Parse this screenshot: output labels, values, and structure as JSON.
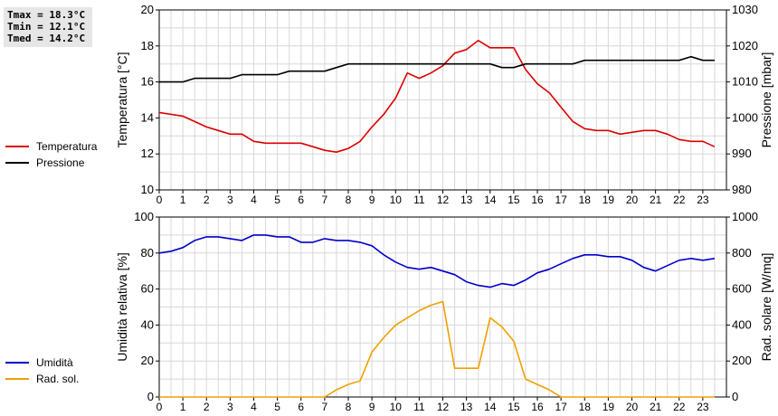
{
  "stats": {
    "tmax": "Tmax = 18.3°C",
    "tmin": "Tmin = 12.1°C",
    "tmed": "Tmed = 14.2°C"
  },
  "legend_top": [
    {
      "label": "Temperatura",
      "color": "#dd0000"
    },
    {
      "label": "Pressione",
      "color": "#000000"
    }
  ],
  "legend_bottom": [
    {
      "label": "Umidità",
      "color": "#0000cc"
    },
    {
      "label": "Rad. sol.",
      "color": "#f0a000"
    }
  ],
  "chart_data": [
    {
      "type": "line",
      "ylabel": "Temperatura [°C]",
      "y2label": "Pressione [mbar]",
      "xlim": [
        0,
        24
      ],
      "ylim": [
        10,
        20
      ],
      "y2lim": [
        980,
        1030
      ],
      "x_ticks": [
        "0",
        "1",
        "2",
        "3",
        "4",
        "5",
        "6",
        "7",
        "8",
        "9",
        "10",
        "11",
        "12",
        "13",
        "14",
        "15",
        "16",
        "17",
        "18",
        "19",
        "20",
        "21",
        "22",
        "23"
      ],
      "y_ticks": [
        "10",
        "12",
        "14",
        "16",
        "18",
        "20"
      ],
      "y2_ticks": [
        "980",
        "990",
        "1000",
        "1010",
        "1020",
        "1030"
      ],
      "grid": true,
      "series": [
        {
          "name": "Temperatura",
          "axis": "left",
          "color": "#dd0000",
          "x": [
            0,
            1,
            1.5,
            2,
            2.5,
            3,
            3.5,
            4,
            4.5,
            5,
            5.5,
            6,
            6.5,
            7,
            7.5,
            8,
            8.5,
            9,
            9.5,
            10,
            10.5,
            11,
            11.5,
            12,
            12.5,
            13,
            13.5,
            14,
            14.5,
            15,
            15.5,
            16,
            16.5,
            17,
            17.5,
            18,
            18.5,
            19,
            19.5,
            20,
            20.5,
            21,
            21.5,
            22,
            22.5,
            23,
            23.5
          ],
          "y": [
            14.3,
            14.1,
            13.8,
            13.5,
            13.3,
            13.1,
            13.1,
            12.7,
            12.6,
            12.6,
            12.6,
            12.6,
            12.4,
            12.2,
            12.1,
            12.3,
            12.7,
            13.5,
            14.2,
            15.1,
            16.5,
            16.2,
            16.5,
            16.9,
            17.6,
            17.8,
            18.3,
            17.9,
            17.9,
            17.9,
            16.7,
            15.9,
            15.4,
            14.6,
            13.8,
            13.4,
            13.3,
            13.3,
            13.1,
            13.2,
            13.3,
            13.3,
            13.1,
            12.8,
            12.7,
            12.7,
            12.4
          ]
        },
        {
          "name": "Pressione",
          "axis": "right",
          "color": "#000000",
          "x": [
            0,
            1,
            1.5,
            2,
            2.5,
            3,
            3.5,
            4,
            4.5,
            5,
            5.5,
            6,
            6.5,
            7,
            7.5,
            8,
            8.5,
            9,
            9.5,
            10,
            10.5,
            11,
            11.5,
            12,
            12.5,
            13,
            13.5,
            14,
            14.5,
            15,
            15.5,
            16,
            16.5,
            17,
            17.5,
            18,
            18.5,
            19,
            19.5,
            20,
            20.5,
            21,
            21.5,
            22,
            22.5,
            23,
            23.5
          ],
          "y": [
            1010,
            1010,
            1011,
            1011,
            1011,
            1011,
            1012,
            1012,
            1012,
            1012,
            1013,
            1013,
            1013,
            1013,
            1014,
            1015,
            1015,
            1015,
            1015,
            1015,
            1015,
            1015,
            1015,
            1015,
            1015,
            1015,
            1015,
            1015,
            1014,
            1014,
            1015,
            1015,
            1015,
            1015,
            1015,
            1016,
            1016,
            1016,
            1016,
            1016,
            1016,
            1016,
            1016,
            1016,
            1017,
            1016,
            1016
          ]
        }
      ]
    },
    {
      "type": "line",
      "ylabel": "Umidità relativa [%]",
      "y2label": "Rad. solare [W/mq]",
      "xlim": [
        0,
        24
      ],
      "ylim": [
        0,
        100
      ],
      "y2lim": [
        0,
        1000
      ],
      "x_ticks": [
        "0",
        "1",
        "2",
        "3",
        "4",
        "5",
        "6",
        "7",
        "8",
        "9",
        "10",
        "11",
        "12",
        "13",
        "14",
        "15",
        "16",
        "17",
        "18",
        "19",
        "20",
        "21",
        "22",
        "23"
      ],
      "y_ticks": [
        "0",
        "20",
        "40",
        "60",
        "80",
        "100"
      ],
      "y2_ticks": [
        "0",
        "200",
        "400",
        "600",
        "800",
        "1000"
      ],
      "grid": true,
      "series": [
        {
          "name": "Umidità",
          "axis": "left",
          "color": "#0000cc",
          "x": [
            0,
            0.5,
            1,
            1.5,
            2,
            2.5,
            3,
            3.5,
            4,
            4.5,
            5,
            5.5,
            6,
            6.5,
            7,
            7.5,
            8,
            8.5,
            9,
            9.5,
            10,
            10.5,
            11,
            11.5,
            12,
            12.5,
            13,
            13.5,
            14,
            14.5,
            15,
            15.5,
            16,
            16.5,
            17,
            17.5,
            18,
            18.5,
            19,
            19.5,
            20,
            20.5,
            21,
            21.5,
            22,
            22.5,
            23,
            23.5
          ],
          "y": [
            80,
            81,
            83,
            87,
            89,
            89,
            88,
            87,
            90,
            90,
            89,
            89,
            86,
            86,
            88,
            87,
            87,
            86,
            84,
            79,
            75,
            72,
            71,
            72,
            70,
            68,
            64,
            62,
            61,
            63,
            62,
            65,
            69,
            71,
            74,
            77,
            79,
            79,
            78,
            78,
            76,
            72,
            70,
            73,
            76,
            77,
            76,
            77
          ]
        },
        {
          "name": "Rad. sol.",
          "axis": "right",
          "color": "#f0a000",
          "x": [
            0,
            7,
            7.5,
            8,
            8.5,
            9,
            9.5,
            10,
            10.5,
            11,
            11.5,
            12,
            12.5,
            13,
            13.5,
            14,
            14.5,
            15,
            15.5,
            16,
            16.5,
            17,
            17.5,
            23.5
          ],
          "y": [
            0,
            0,
            40,
            70,
            90,
            250,
            330,
            400,
            440,
            480,
            510,
            530,
            160,
            160,
            160,
            440,
            390,
            310,
            100,
            70,
            40,
            0,
            0,
            0
          ]
        }
      ]
    }
  ]
}
